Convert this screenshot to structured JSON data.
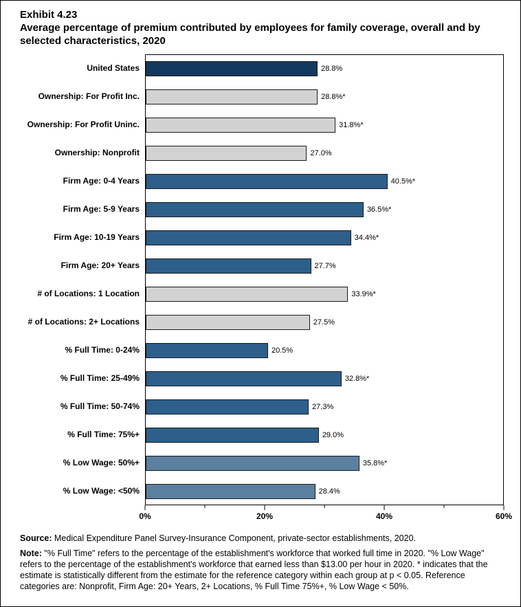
{
  "exhibit": {
    "number": "Exhibit 4.23",
    "title": "Average percentage of premium contributed by employees for family coverage, overall and by selected characteristics, 2020"
  },
  "chart_data": {
    "type": "bar",
    "orientation": "horizontal",
    "xlim": [
      0,
      60
    ],
    "x_axis": {
      "max": 60,
      "ticks": [
        {
          "pos": 0,
          "label": "0%"
        },
        {
          "pos": 10
        },
        {
          "pos": 20,
          "label": "20%"
        },
        {
          "pos": 30
        },
        {
          "pos": 40,
          "label": "40%"
        },
        {
          "pos": 50
        },
        {
          "pos": 60,
          "label": "60%"
        }
      ]
    },
    "colors": {
      "navy": "#12395E",
      "gray": "#D2D2D2",
      "blue": "#2D5F8B",
      "slate": "#5C80A0"
    },
    "rows": [
      {
        "label": "United States",
        "value": 28.8,
        "display": "28.8%",
        "color": "navy"
      },
      {
        "label": "Ownership: For Profit Inc.",
        "value": 28.8,
        "display": "28.8%*",
        "color": "gray"
      },
      {
        "label": "Ownership: For Profit Uninc.",
        "value": 31.8,
        "display": "31.8%*",
        "color": "gray"
      },
      {
        "label": "Ownership: Nonprofit",
        "value": 27.0,
        "display": "27.0%",
        "color": "gray"
      },
      {
        "label": "Firm Age: 0-4 Years",
        "value": 40.5,
        "display": "40.5%*",
        "color": "blue"
      },
      {
        "label": "Firm Age: 5-9 Years",
        "value": 36.5,
        "display": "36.5%*",
        "color": "blue"
      },
      {
        "label": "Firm Age: 10-19 Years",
        "value": 34.4,
        "display": "34.4%*",
        "color": "blue"
      },
      {
        "label": "Firm Age: 20+ Years",
        "value": 27.7,
        "display": "27.7%",
        "color": "blue"
      },
      {
        "label": "# of Locations: 1 Location",
        "value": 33.9,
        "display": "33.9%*",
        "color": "gray"
      },
      {
        "label": "# of Locations: 2+ Locations",
        "value": 27.5,
        "display": "27.5%",
        "color": "gray"
      },
      {
        "label": "% Full Time: 0-24%",
        "value": 20.5,
        "display": "20.5%",
        "color": "blue"
      },
      {
        "label": "% Full Time: 25-49%",
        "value": 32.8,
        "display": "32.8%*",
        "color": "blue"
      },
      {
        "label": "% Full Time: 50-74%",
        "value": 27.3,
        "display": "27.3%",
        "color": "blue"
      },
      {
        "label": "% Full Time: 75%+",
        "value": 29.0,
        "display": "29.0%",
        "color": "blue"
      },
      {
        "label": "% Low Wage: 50%+",
        "value": 35.8,
        "display": "35.8%*",
        "color": "slate"
      },
      {
        "label": "% Low Wage: <50%",
        "value": 28.4,
        "display": "28.4%",
        "color": "slate"
      }
    ]
  },
  "footer": {
    "source_label": "Source:",
    "source_text": " Medical Expenditure Panel Survey-Insurance Component, private-sector establishments, 2020.",
    "note_label": "Note:",
    "note_text": " \"% Full Time\" refers to the percentage of the establishment's workforce that worked full time in 2020. \"% Low Wage\" refers to the percentage of the establishment's workforce that earned less than $13.00 per hour in 2020. * indicates that the estimate is statistically different from the estimate for the reference category within each group at p < 0.05.  Reference categories are: Nonprofit, Firm Age: 20+ Years, 2+ Locations, % Full Time 75%+, % Low Wage < 50%."
  }
}
